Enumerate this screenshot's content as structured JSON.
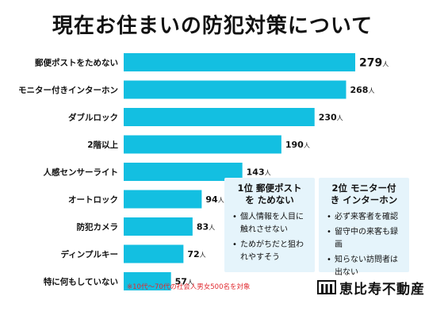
{
  "chart_data": {
    "type": "bar",
    "orientation": "horizontal",
    "title": "現在お住まいの防犯対策について",
    "categories": [
      "郵便ポストをためない",
      "モニター付きインターホン",
      "ダブルロック",
      "2階以上",
      "人感センサーライト",
      "オートロック",
      "防犯カメラ",
      "ディンプルキー",
      "特に何もしていない"
    ],
    "values": [
      279,
      268,
      230,
      190,
      143,
      94,
      83,
      72,
      57
    ],
    "unit": "人",
    "xlim": [
      0,
      279
    ],
    "bar_color": "#13bfe1",
    "grid": false
  },
  "cards": [
    {
      "title": "1位 郵便ポストを ためない",
      "items": [
        "個人情報を人目に触れさせない",
        "ためがちだと狙われやすそう"
      ]
    },
    {
      "title": "2位 モニター付き インターホン",
      "items": [
        "必ず来客者を確認",
        "留守中の来客も録画",
        "知らない訪問者は出ない"
      ]
    }
  ],
  "footnote": "※10代〜70代の社会人男女500名を対象",
  "logo": {
    "name": "恵比寿不動産",
    "icon": "building-logo-icon"
  }
}
